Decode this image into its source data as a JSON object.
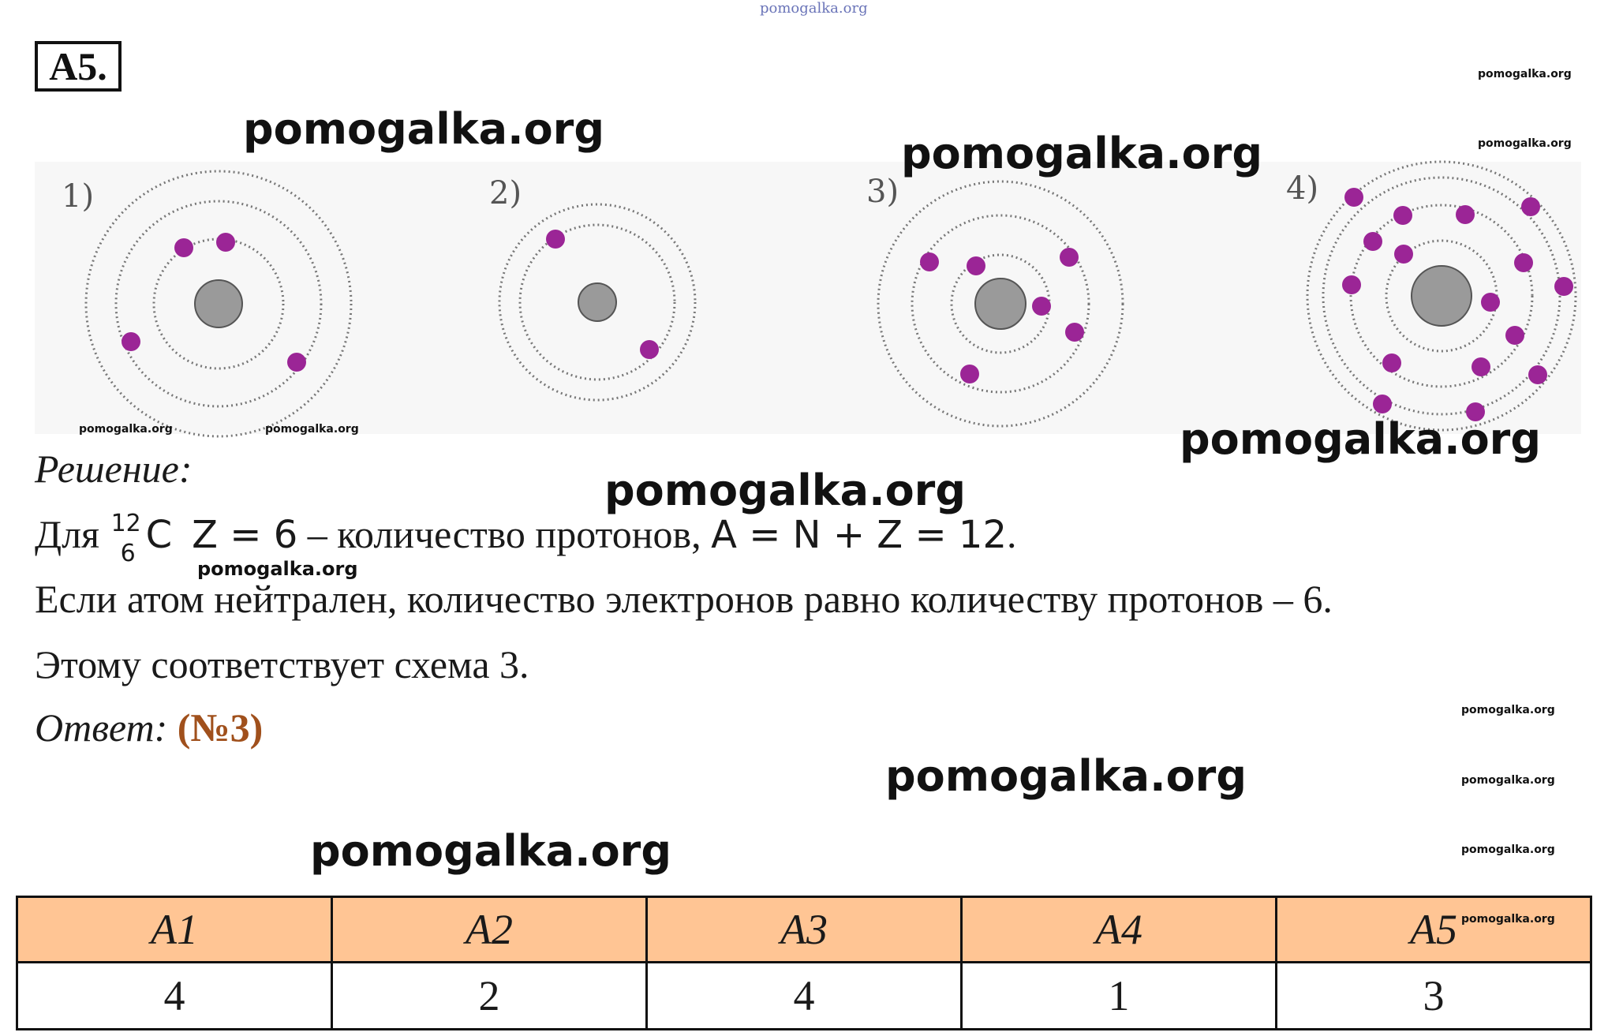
{
  "header": {
    "task_label": "A5.",
    "site_top": "pomogalka.org"
  },
  "figures": [
    {
      "label": "1)"
    },
    {
      "label": "2)"
    },
    {
      "label": "3)"
    },
    {
      "label": "4)"
    }
  ],
  "solution": {
    "heading": "Решение",
    "heading_colon": ":",
    "line1_prefix": "Для",
    "isotope_mass": "12",
    "isotope_number": "6",
    "isotope_symbol": "C",
    "line1_formula1": "Z = 6",
    "line1_middle": " – количество протонов, ",
    "line1_formula2": "A = N + Z = 12",
    "line1_end": ".",
    "line2": "Если атом нейтрален, количество электронов равно количеству протонов – 6.",
    "line3": "Этому соответствует схема 3.",
    "answer_label": "Ответ:",
    "answer_value": "(№3)"
  },
  "table": {
    "headers": [
      "A1",
      "A2",
      "A3",
      "A4",
      "A5"
    ],
    "values": [
      "4",
      "2",
      "4",
      "1",
      "3"
    ]
  },
  "watermark": "pomogalka.org",
  "colors": {
    "electron": "#9b2596",
    "nucleus": "#9a9a9a",
    "table_header": "#ffc594",
    "answer": "#a0501c"
  }
}
